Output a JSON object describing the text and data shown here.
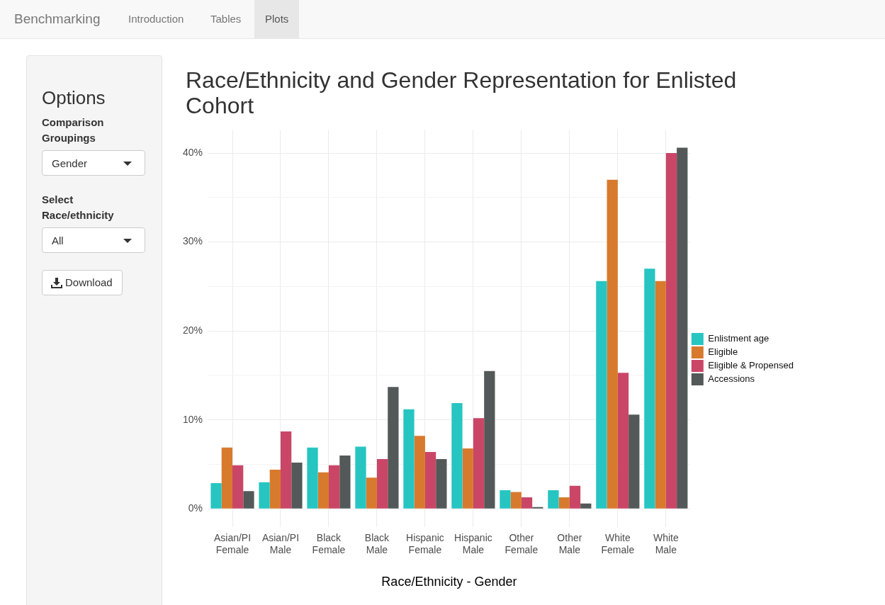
{
  "chart_data": [
    {
      "type": "other",
      "annotations": [
        "Benchmarking",
        "Introduction",
        "Tables",
        "Plots",
        "Options",
        "Comparison Groupings",
        "Gender",
        "Select Race/ethnicity",
        "All",
        "Download"
      ]
    },
    {
      "type": "bar",
      "title": "Race/Ethnicity and Gender Representation for Enlisted Cohort",
      "xlabel": "Race/Ethnicity - Gender",
      "categories": [
        "Asian/PI Female",
        "Asian/PI Male",
        "Black Female",
        "Black Male",
        "Hispanic Female",
        "Hispanic Male",
        "Other Female",
        "Other Male",
        "White Female",
        "White Male"
      ],
      "series": [
        {
          "name": "Enlistment age",
          "color": "#26c5c2",
          "values": [
            2.9,
            3.0,
            6.9,
            7.0,
            11.2,
            11.9,
            2.1,
            2.1,
            25.6,
            27.0
          ]
        },
        {
          "name": "Eligible",
          "color": "#d87a2d",
          "values": [
            6.9,
            4.4,
            4.1,
            3.5,
            8.2,
            6.8,
            1.9,
            1.3,
            37.0,
            25.6
          ]
        },
        {
          "name": "Eligible & Propensed",
          "color": "#ca4667",
          "values": [
            4.9,
            8.7,
            4.9,
            5.6,
            6.4,
            10.2,
            1.3,
            2.6,
            15.3,
            40.0
          ]
        },
        {
          "name": "Accessions",
          "color": "#535958",
          "values": [
            2.0,
            5.2,
            6.0,
            13.7,
            5.6,
            15.5,
            0.2,
            0.6,
            10.6,
            40.6
          ]
        }
      ],
      "ylim": [
        -2.03,
        42.6
      ],
      "yticks": [
        {
          "value": 0,
          "label": "0%"
        },
        {
          "value": 5,
          "label": null
        },
        {
          "value": 10,
          "label": "10%"
        },
        {
          "value": 15,
          "label": null
        },
        {
          "value": 20,
          "label": "20%"
        },
        {
          "value": 25,
          "label": null
        },
        {
          "value": 30,
          "label": "30%"
        },
        {
          "value": 35,
          "label": null
        },
        {
          "value": 40,
          "label": "40%"
        }
      ],
      "grid": true,
      "legend": "right"
    }
  ]
}
